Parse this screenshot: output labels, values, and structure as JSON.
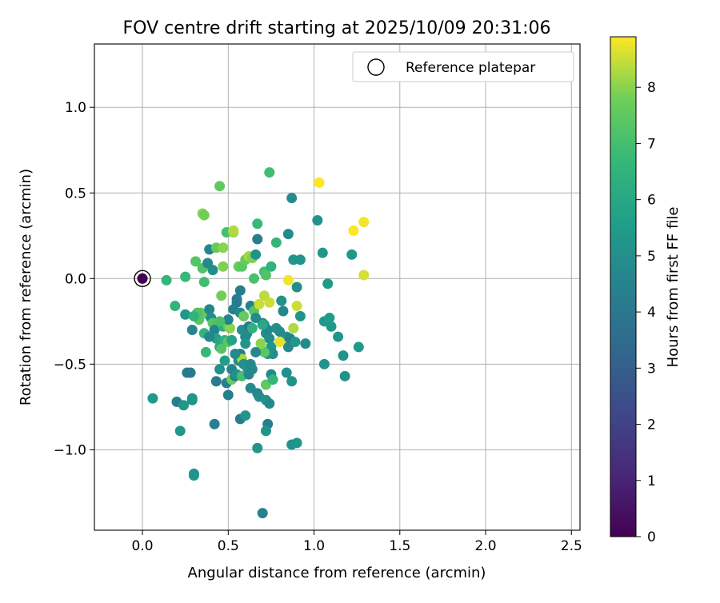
{
  "chart_data": {
    "type": "scatter",
    "title": "FOV centre drift starting at 2025/10/09 20:31:06",
    "xlabel": "Angular distance from reference (arcmin)",
    "ylabel": "Rotation from reference (arcmin)",
    "xlim": [
      -0.28,
      2.55
    ],
    "ylim": [
      -1.47,
      1.37
    ],
    "xticks": [
      0.0,
      0.5,
      1.0,
      1.5,
      2.0,
      2.5
    ],
    "xtick_labels": [
      "0.0",
      "0.5",
      "1.0",
      "1.5",
      "2.0",
      "2.5"
    ],
    "yticks": [
      -1.0,
      -0.5,
      0.0,
      0.5,
      1.0
    ],
    "ytick_labels": [
      "−1.0",
      "−0.5",
      "0.0",
      "0.5",
      "1.0"
    ],
    "grid": true,
    "legend": {
      "placement": "top-right",
      "entries": [
        "Reference platepar"
      ]
    },
    "reference_point": {
      "x": 0.0,
      "y": 0.0,
      "hours": 0.0,
      "label": "Reference platepar"
    },
    "colorbar": {
      "label": "Hours from first FF file",
      "range": [
        0,
        8.9
      ],
      "ticks": [
        0,
        1,
        2,
        3,
        4,
        5,
        6,
        7,
        8
      ],
      "tick_labels": [
        "0",
        "1",
        "2",
        "3",
        "4",
        "5",
        "6",
        "7",
        "8"
      ],
      "colormap": "viridis"
    },
    "series": [
      {
        "name": "FOV centre",
        "points": [
          [
            0.0,
            0.0,
            0.0
          ],
          [
            0.14,
            -0.01,
            6.6
          ],
          [
            0.25,
            0.01,
            6.7
          ],
          [
            0.19,
            -0.16,
            6.5
          ],
          [
            0.25,
            -0.21,
            5.3
          ],
          [
            0.29,
            -0.3,
            4.6
          ],
          [
            0.06,
            -0.7,
            5.4
          ],
          [
            0.2,
            -0.72,
            4.3
          ],
          [
            0.24,
            -0.74,
            5.3
          ],
          [
            0.22,
            -0.89,
            5.3
          ],
          [
            0.29,
            -0.71,
            5.0
          ],
          [
            0.29,
            -0.7,
            5.2
          ],
          [
            0.26,
            -0.55,
            4.2
          ],
          [
            0.28,
            -0.55,
            4.1
          ],
          [
            0.3,
            -1.14,
            5.1
          ],
          [
            0.3,
            -1.15,
            5.2
          ],
          [
            0.35,
            0.38,
            8.0
          ],
          [
            0.36,
            0.37,
            7.8
          ],
          [
            0.45,
            0.54,
            7.5
          ],
          [
            0.31,
            0.1,
            7.3
          ],
          [
            0.35,
            0.06,
            7.2
          ],
          [
            0.38,
            0.09,
            4.7
          ],
          [
            0.39,
            0.17,
            4.6
          ],
          [
            0.41,
            0.05,
            4.9
          ],
          [
            0.36,
            -0.02,
            6.9
          ],
          [
            0.43,
            0.18,
            7.6
          ],
          [
            0.47,
            0.18,
            8.0
          ],
          [
            0.47,
            0.07,
            7.9
          ],
          [
            0.49,
            0.27,
            7.0
          ],
          [
            0.53,
            0.27,
            8.1
          ],
          [
            0.53,
            0.28,
            8.3
          ],
          [
            0.56,
            0.07,
            7.7
          ],
          [
            0.58,
            0.07,
            7.4
          ],
          [
            0.6,
            0.11,
            7.6
          ],
          [
            0.62,
            0.13,
            8.2
          ],
          [
            0.64,
            0.12,
            7.9
          ],
          [
            0.66,
            0.14,
            5.1
          ],
          [
            0.65,
            0.0,
            7.1
          ],
          [
            0.67,
            0.32,
            6.7
          ],
          [
            0.67,
            0.23,
            4.2
          ],
          [
            0.71,
            0.04,
            6.9
          ],
          [
            0.72,
            0.02,
            7.2
          ],
          [
            0.75,
            0.07,
            6.5
          ],
          [
            0.74,
            0.62,
            6.9
          ],
          [
            0.87,
            0.47,
            4.9
          ],
          [
            0.78,
            0.21,
            6.6
          ],
          [
            0.85,
            0.26,
            4.8
          ],
          [
            0.88,
            0.11,
            5.3
          ],
          [
            0.92,
            0.11,
            5.2
          ],
          [
            0.85,
            -0.01,
            8.8
          ],
          [
            0.9,
            -0.05,
            4.9
          ],
          [
            1.02,
            0.34,
            5.1
          ],
          [
            1.03,
            0.56,
            8.9
          ],
          [
            1.05,
            0.15,
            5.3
          ],
          [
            1.08,
            -0.03,
            5.5
          ],
          [
            1.23,
            0.28,
            8.9
          ],
          [
            1.29,
            0.33,
            8.8
          ],
          [
            1.29,
            0.02,
            8.6
          ],
          [
            1.22,
            0.14,
            5.3
          ],
          [
            0.34,
            -0.2,
            7.6
          ],
          [
            0.33,
            -0.24,
            7.4
          ],
          [
            0.32,
            -0.2,
            7.2
          ],
          [
            0.3,
            -0.22,
            6.5
          ],
          [
            0.38,
            -0.21,
            7.6
          ],
          [
            0.39,
            -0.18,
            4.6
          ],
          [
            0.4,
            -0.23,
            4.9
          ],
          [
            0.41,
            -0.26,
            7.3
          ],
          [
            0.42,
            -0.3,
            4.5
          ],
          [
            0.43,
            -0.35,
            5.8
          ],
          [
            0.45,
            -0.4,
            6.0
          ],
          [
            0.47,
            -0.28,
            6.3
          ],
          [
            0.5,
            -0.28,
            7.6
          ],
          [
            0.51,
            -0.29,
            8.0
          ],
          [
            0.48,
            -0.36,
            6.4
          ],
          [
            0.5,
            -0.37,
            7.4
          ],
          [
            0.46,
            -0.41,
            7.3
          ],
          [
            0.37,
            -0.43,
            6.7
          ],
          [
            0.36,
            -0.32,
            6.5
          ],
          [
            0.39,
            -0.34,
            4.6
          ],
          [
            0.43,
            -0.6,
            4.2
          ],
          [
            0.45,
            -0.53,
            5.0
          ],
          [
            0.42,
            -0.85,
            4.4
          ],
          [
            0.49,
            -0.61,
            4.4
          ],
          [
            0.5,
            -0.68,
            4.3
          ],
          [
            0.52,
            -0.53,
            4.5
          ],
          [
            0.52,
            -0.59,
            7.7
          ],
          [
            0.54,
            -0.57,
            4.4
          ],
          [
            0.55,
            -0.56,
            5.1
          ],
          [
            0.56,
            -0.48,
            4.8
          ],
          [
            0.57,
            -0.44,
            4.1
          ],
          [
            0.58,
            -0.47,
            8.2
          ],
          [
            0.59,
            -0.5,
            4.9
          ],
          [
            0.58,
            -0.57,
            7.0
          ],
          [
            0.57,
            -0.82,
            4.1
          ],
          [
            0.6,
            -0.8,
            5.3
          ],
          [
            0.61,
            -0.52,
            5.2
          ],
          [
            0.62,
            -0.56,
            4.6
          ],
          [
            0.63,
            -0.5,
            4.6
          ],
          [
            0.64,
            -0.53,
            4.7
          ],
          [
            0.63,
            -0.64,
            4.7
          ],
          [
            0.67,
            -0.67,
            4.6
          ],
          [
            0.68,
            -0.69,
            4.8
          ],
          [
            0.67,
            -0.99,
            5.2
          ],
          [
            0.72,
            -0.62,
            7.5
          ],
          [
            0.72,
            -0.71,
            5.1
          ],
          [
            0.74,
            -0.73,
            4.7
          ],
          [
            0.73,
            -0.85,
            4.3
          ],
          [
            0.72,
            -0.89,
            5.2
          ],
          [
            0.7,
            -1.37,
            4.4
          ],
          [
            0.75,
            -0.56,
            4.7
          ],
          [
            0.76,
            -0.59,
            6.6
          ],
          [
            0.84,
            -0.55,
            5.0
          ],
          [
            0.87,
            -0.6,
            5.1
          ],
          [
            0.87,
            -0.97,
            5.1
          ],
          [
            0.9,
            -0.96,
            5.2
          ],
          [
            0.53,
            -0.18,
            4.4
          ],
          [
            0.55,
            -0.14,
            4.3
          ],
          [
            0.57,
            -0.2,
            4.7
          ],
          [
            0.59,
            -0.22,
            7.6
          ],
          [
            0.58,
            -0.3,
            5.1
          ],
          [
            0.6,
            -0.34,
            4.6
          ],
          [
            0.6,
            -0.38,
            5.2
          ],
          [
            0.61,
            -0.32,
            4.8
          ],
          [
            0.63,
            -0.16,
            4.4
          ],
          [
            0.65,
            -0.19,
            7.4
          ],
          [
            0.66,
            -0.23,
            4.8
          ],
          [
            0.68,
            -0.15,
            8.5
          ],
          [
            0.7,
            -0.26,
            4.5
          ],
          [
            0.71,
            -0.27,
            5.0
          ],
          [
            0.72,
            -0.32,
            5.0
          ],
          [
            0.73,
            -0.3,
            4.6
          ],
          [
            0.74,
            -0.35,
            4.9
          ],
          [
            0.75,
            -0.4,
            5.2
          ],
          [
            0.76,
            -0.44,
            4.9
          ],
          [
            0.78,
            -0.29,
            5.0
          ],
          [
            0.8,
            -0.31,
            4.8
          ],
          [
            0.81,
            -0.13,
            5.1
          ],
          [
            0.82,
            -0.19,
            4.6
          ],
          [
            0.84,
            -0.34,
            4.9
          ],
          [
            0.85,
            -0.4,
            4.7
          ],
          [
            0.86,
            -0.35,
            4.4
          ],
          [
            0.88,
            -0.29,
            8.3
          ],
          [
            0.89,
            -0.37,
            5.3
          ],
          [
            0.9,
            -0.16,
            8.5
          ],
          [
            0.92,
            -0.22,
            5.2
          ],
          [
            0.95,
            -0.38,
            4.9
          ],
          [
            0.73,
            -0.44,
            5.2
          ],
          [
            0.71,
            -0.43,
            7.4
          ],
          [
            0.69,
            -0.38,
            8.0
          ],
          [
            0.66,
            -0.43,
            4.7
          ],
          [
            0.8,
            -0.37,
            8.7
          ],
          [
            0.62,
            -0.28,
            4.1
          ],
          [
            0.57,
            -0.07,
            4.2
          ],
          [
            0.55,
            -0.12,
            4.1
          ],
          [
            0.5,
            -0.24,
            4.5
          ],
          [
            0.46,
            -0.1,
            7.8
          ],
          [
            0.45,
            -0.25,
            7.1
          ],
          [
            1.06,
            -0.25,
            5.3
          ],
          [
            1.09,
            -0.23,
            5.5
          ],
          [
            1.1,
            -0.28,
            5.3
          ],
          [
            1.14,
            -0.34,
            5.2
          ],
          [
            1.17,
            -0.45,
            5.2
          ],
          [
            1.18,
            -0.57,
            5.1
          ],
          [
            1.26,
            -0.4,
            5.4
          ],
          [
            1.06,
            -0.5,
            5.1
          ],
          [
            0.74,
            -0.14,
            8.5
          ],
          [
            0.71,
            -0.1,
            8.4
          ],
          [
            0.7,
            -0.27,
            6.0
          ],
          [
            0.64,
            -0.29,
            6.4
          ],
          [
            0.52,
            -0.36,
            5.8
          ],
          [
            0.48,
            -0.48,
            5.6
          ],
          [
            0.54,
            -0.44,
            4.8
          ]
        ]
      }
    ]
  }
}
